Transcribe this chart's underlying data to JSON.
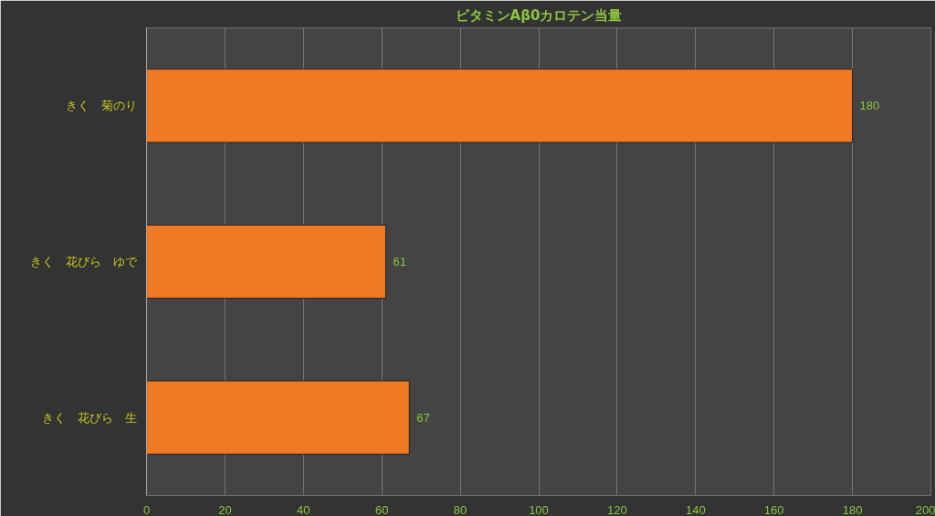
{
  "chart_data": {
    "type": "bar",
    "orientation": "horizontal",
    "title": "ビタミンAβ0カロテン当量",
    "categories": [
      "きく　菊のり",
      "きく　花びら　ゆで",
      "きく　花びら　生"
    ],
    "values": [
      180,
      61,
      67
    ],
    "color": "#f07a24",
    "xlim": [
      0,
      200
    ],
    "xticks": [
      0,
      20,
      40,
      60,
      80,
      100,
      120,
      140,
      160,
      180,
      200
    ],
    "grid": "x",
    "data_labels": true
  }
}
